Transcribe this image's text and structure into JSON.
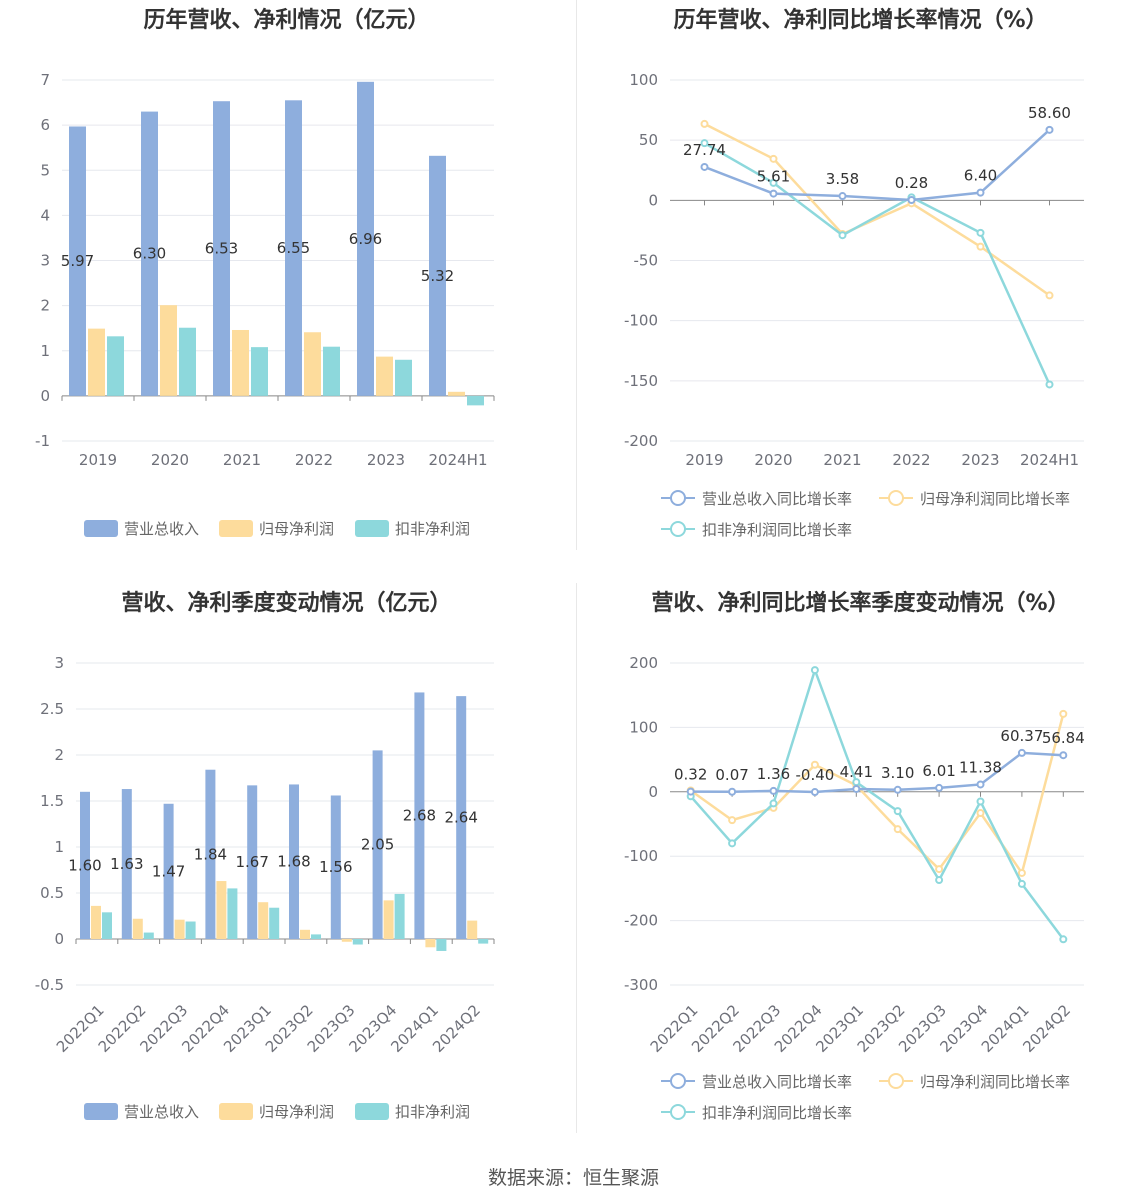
{
  "source_label": "数据来源：恒生聚源",
  "colors": {
    "revenue": "#8eaedd",
    "parent_profit": "#fddc9c",
    "deducted_profit": "#8dd8dc"
  },
  "chart_data": [
    {
      "id": "annual-bar",
      "type": "bar",
      "title": "历年营收、净利情况（亿元）",
      "categories": [
        "2019",
        "2020",
        "2021",
        "2022",
        "2023",
        "2024H1"
      ],
      "ylim": [
        -1,
        7
      ],
      "yticks": [
        -1,
        0,
        1,
        2,
        3,
        4,
        5,
        6,
        7
      ],
      "series": [
        {
          "name": "营业总收入",
          "values": [
            5.97,
            6.3,
            6.53,
            6.55,
            6.96,
            5.32
          ]
        },
        {
          "name": "归母净利润",
          "values": [
            1.49,
            2.01,
            1.46,
            1.41,
            0.87,
            0.09
          ]
        },
        {
          "name": "扣非净利润",
          "values": [
            1.32,
            1.51,
            1.08,
            1.09,
            0.8,
            -0.21
          ]
        }
      ],
      "data_labels": [
        "5.97",
        "6.30",
        "6.53",
        "6.55",
        "6.96",
        "5.32"
      ],
      "legend": [
        "营业总收入",
        "归母净利润",
        "扣非净利润"
      ],
      "legend_position": "bottom",
      "grid": true
    },
    {
      "id": "annual-growth",
      "type": "line",
      "title": "历年营收、净利同比增长率情况（%）",
      "categories": [
        "2019",
        "2020",
        "2021",
        "2022",
        "2023",
        "2024H1"
      ],
      "ylim": [
        -200,
        100
      ],
      "yticks": [
        -200,
        -150,
        -100,
        -50,
        0,
        50,
        100
      ],
      "series": [
        {
          "name": "营业总收入同比增长率",
          "values": [
            27.74,
            5.61,
            3.58,
            0.28,
            6.4,
            58.6
          ]
        },
        {
          "name": "归母净利润同比增长率",
          "values": [
            63.5,
            34.5,
            -28.0,
            -2.5,
            -38.5,
            -79.0
          ]
        },
        {
          "name": "扣非净利润同比增长率",
          "values": [
            47.5,
            14.5,
            -29.0,
            2.5,
            -27.0,
            -153.0
          ]
        }
      ],
      "data_labels": [
        "27.74",
        "5.61",
        "3.58",
        "0.28",
        "6.40",
        "58.60"
      ],
      "legend": [
        "营业总收入同比增长率",
        "归母净利润同比增长率",
        "扣非净利润同比增长率"
      ],
      "legend_position": "bottom",
      "grid": true
    },
    {
      "id": "quarterly-bar",
      "type": "bar",
      "title": "营收、净利季度变动情况（亿元）",
      "categories": [
        "2022Q1",
        "2022Q2",
        "2022Q3",
        "2022Q4",
        "2023Q1",
        "2023Q2",
        "2023Q3",
        "2023Q4",
        "2024Q1",
        "2024Q2"
      ],
      "ylim": [
        -0.5,
        3
      ],
      "yticks": [
        -0.5,
        0,
        0.5,
        1,
        1.5,
        2,
        2.5,
        3
      ],
      "series": [
        {
          "name": "营业总收入",
          "values": [
            1.6,
            1.63,
            1.47,
            1.84,
            1.67,
            1.68,
            1.56,
            2.05,
            2.68,
            2.64
          ]
        },
        {
          "name": "归母净利润",
          "values": [
            0.36,
            0.22,
            0.21,
            0.63,
            0.4,
            0.1,
            -0.03,
            0.42,
            -0.09,
            0.2
          ]
        },
        {
          "name": "扣非净利润",
          "values": [
            0.29,
            0.07,
            0.19,
            0.55,
            0.34,
            0.05,
            -0.06,
            0.49,
            -0.13,
            -0.05
          ]
        }
      ],
      "data_labels": [
        "1.60",
        "1.63",
        "1.47",
        "1.84",
        "1.67",
        "1.68",
        "1.56",
        "2.05",
        "2.68",
        "2.64"
      ],
      "legend": [
        "营业总收入",
        "归母净利润",
        "扣非净利润"
      ],
      "legend_position": "bottom",
      "grid": true
    },
    {
      "id": "quarterly-growth",
      "type": "line",
      "title": "营收、净利同比增长率季度变动情况（%）",
      "categories": [
        "2022Q1",
        "2022Q2",
        "2022Q3",
        "2022Q4",
        "2023Q1",
        "2023Q2",
        "2023Q3",
        "2023Q4",
        "2024Q1",
        "2024Q2"
      ],
      "ylim": [
        -300,
        200
      ],
      "yticks": [
        -300,
        -200,
        -100,
        0,
        100,
        200
      ],
      "series": [
        {
          "name": "营业总收入同比增长率",
          "values": [
            0.32,
            0.07,
            1.36,
            -0.4,
            4.41,
            3.1,
            6.01,
            11.38,
            60.37,
            56.84
          ]
        },
        {
          "name": "归母净利润同比增长率",
          "values": [
            2,
            -44,
            -25,
            42,
            10,
            -58,
            -120,
            -33,
            -126,
            121
          ]
        },
        {
          "name": "扣非净利润同比增长率",
          "values": [
            -7,
            -80,
            -18,
            189,
            15,
            -30,
            -137,
            -15,
            -143,
            -229
          ]
        }
      ],
      "data_labels": [
        "0.32",
        "0.07",
        "1.36",
        "-0.40",
        "4.41",
        "3.10",
        "6.01",
        "11.38",
        "60.37",
        "56.84"
      ],
      "legend": [
        "营业总收入同比增长率",
        "归母净利润同比增长率",
        "扣非净利润同比增长率"
      ],
      "legend_position": "bottom",
      "grid": true
    }
  ]
}
